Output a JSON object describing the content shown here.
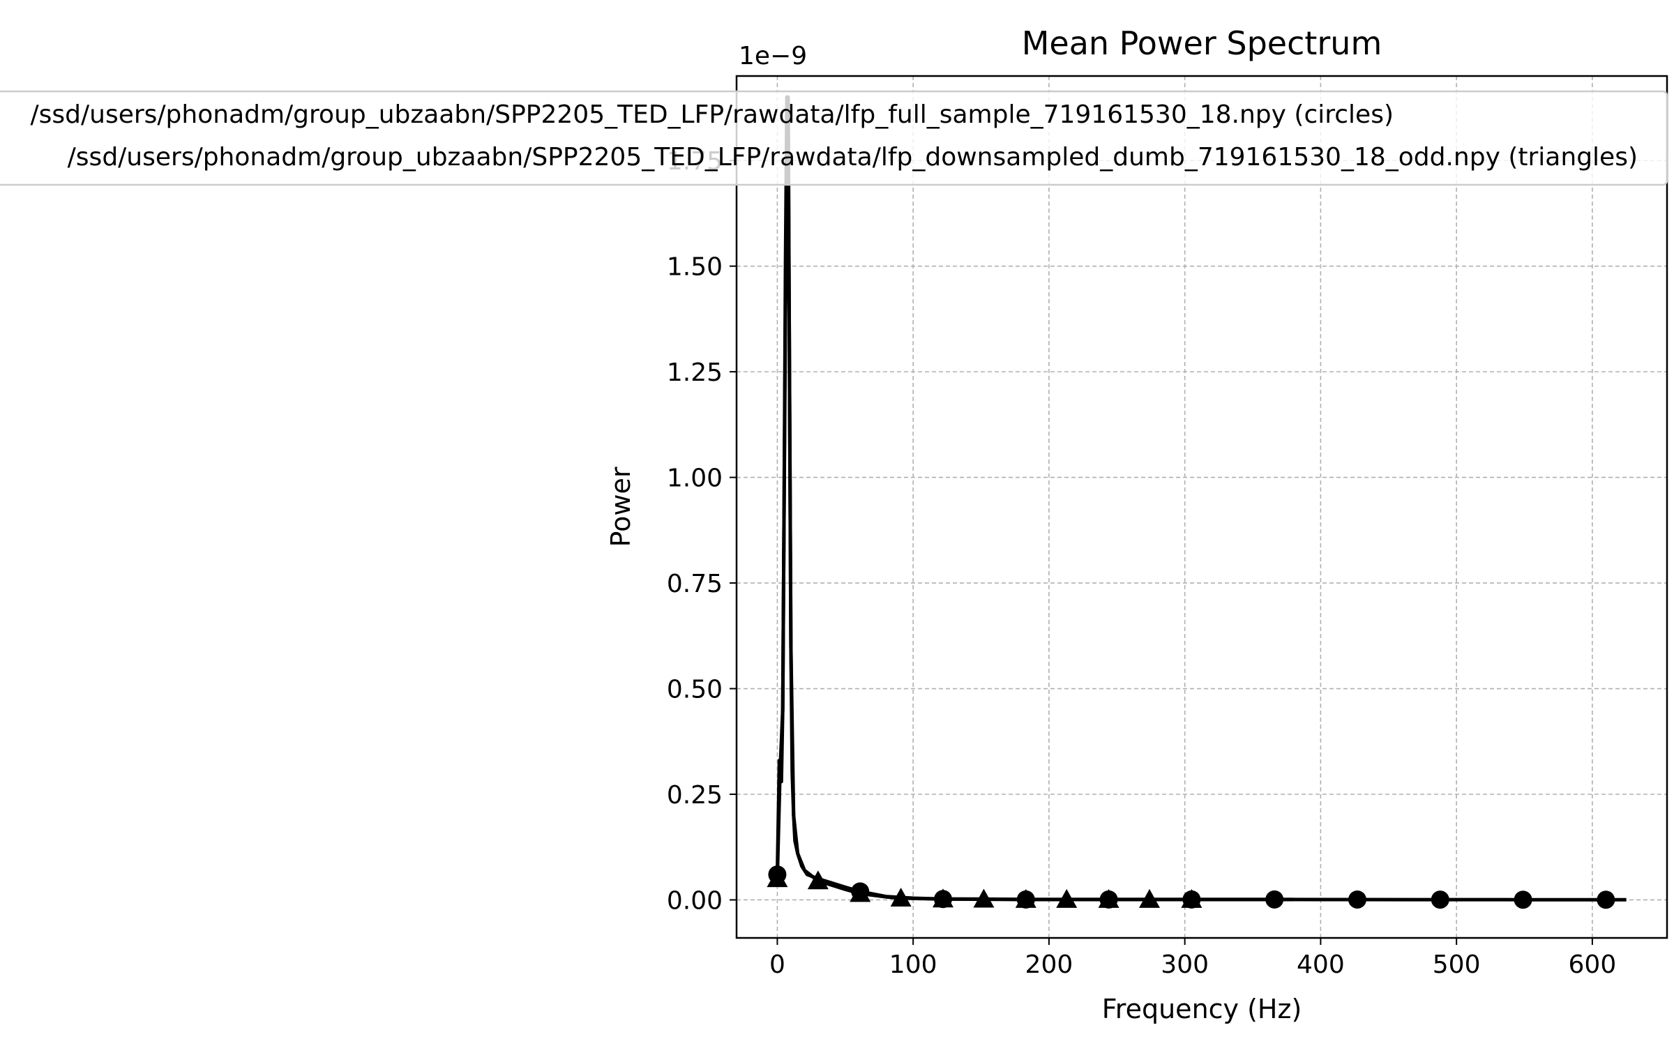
{
  "chart_data": {
    "type": "line",
    "title": "Mean Power Spectrum",
    "xlabel": "Frequency (Hz)",
    "ylabel": "Power",
    "y_offset_label": "1e−9",
    "xlim": [
      -30,
      655
    ],
    "ylim": [
      -9e-11,
      1.95e-09
    ],
    "x_ticks": [
      0,
      100,
      200,
      300,
      400,
      500,
      600
    ],
    "x_tick_labels": [
      "0",
      "100",
      "200",
      "300",
      "400",
      "500",
      "600"
    ],
    "y_ticks": [
      0,
      2.5e-10,
      5e-10,
      7.5e-10,
      1e-09,
      1.25e-09,
      1.5e-09,
      1.75e-09
    ],
    "y_tick_labels": [
      "0.00",
      "0.25",
      "0.50",
      "0.75",
      "1.00",
      "1.25",
      "1.50",
      "1.75"
    ],
    "grid": true,
    "legend_position": "upper-center",
    "legend": [
      {
        "label": "/ssd/users/phonadm/group_ubzaabn/SPP2205_TED_LFP/rawdata/lfp_full_sample_719161530_18.npy (circles)",
        "marker": "circle"
      },
      {
        "label": "/ssd/users/phonadm/group_ubzaabn/SPP2205_TED_LFP/rawdata/lfp_downsampled_dumb_719161530_18_odd.npy (triangles)",
        "marker": "triangle"
      }
    ],
    "series": [
      {
        "name": "/ssd/users/phonadm/group_ubzaabn/SPP2205_TED_LFP/rawdata/lfp_full_sample_719161530_18.npy (circles)",
        "marker": "circle",
        "color": "#000000",
        "x": [
          0,
          1.5,
          2,
          3,
          4,
          5,
          6,
          7,
          8,
          9,
          10,
          11,
          12,
          13,
          15,
          18,
          22,
          30,
          40,
          50,
          61,
          80,
          100,
          122,
          150,
          183,
          244,
          305,
          366,
          427,
          488,
          549,
          610,
          625
        ],
        "y": [
          6e-11,
          3.3e-10,
          3e-10,
          2.8e-10,
          4.5e-10,
          9.5e-10,
          1.5e-09,
          1.9e-09,
          1.9e-09,
          1.2e-09,
          6e-10,
          3e-10,
          2e-10,
          1.4e-10,
          1.1e-10,
          8e-11,
          6e-11,
          5e-11,
          4e-11,
          3e-11,
          2e-11,
          8e-12,
          4e-12,
          2e-12,
          2e-12,
          1e-12,
          1e-12,
          1e-12,
          1e-12,
          8e-13,
          6e-13,
          4e-13,
          3e-13,
          3e-13
        ],
        "marker_x": [
          0,
          61,
          122,
          183,
          244,
          305,
          366,
          427,
          488,
          549,
          610
        ],
        "marker_y": [
          6e-11,
          2e-11,
          2e-12,
          1e-12,
          1e-12,
          1e-12,
          1e-12,
          8e-13,
          6e-13,
          4e-13,
          3e-13
        ]
      },
      {
        "name": "/ssd/users/phonadm/group_ubzaabn/SPP2205_TED_LFP/rawdata/lfp_downsampled_dumb_719161530_18_odd.npy (triangles)",
        "marker": "triangle",
        "color": "#000000",
        "x": [
          0,
          2,
          4,
          6,
          8,
          10,
          12,
          15,
          20,
          30,
          40,
          50,
          61,
          80,
          91,
          122,
          152,
          183,
          213,
          244,
          274,
          305,
          380
        ],
        "y": [
          5e-11,
          3e-10,
          4.5e-10,
          1.4e-09,
          1.85e-09,
          6e-10,
          2e-10,
          1.1e-10,
          7e-11,
          4.5e-11,
          3.5e-11,
          2.5e-11,
          1.5e-11,
          7e-12,
          4e-12,
          2e-12,
          1.5e-12,
          1e-12,
          1e-12,
          1e-12,
          1e-12,
          1e-12,
          1e-12
        ],
        "marker_x": [
          0,
          30,
          61,
          91,
          122,
          152,
          183,
          213,
          244,
          274,
          305
        ],
        "marker_y": [
          5e-11,
          4.5e-11,
          1.5e-11,
          4e-12,
          2e-12,
          1.5e-12,
          1e-12,
          1e-12,
          1e-12,
          1e-12,
          1e-12
        ]
      }
    ]
  }
}
